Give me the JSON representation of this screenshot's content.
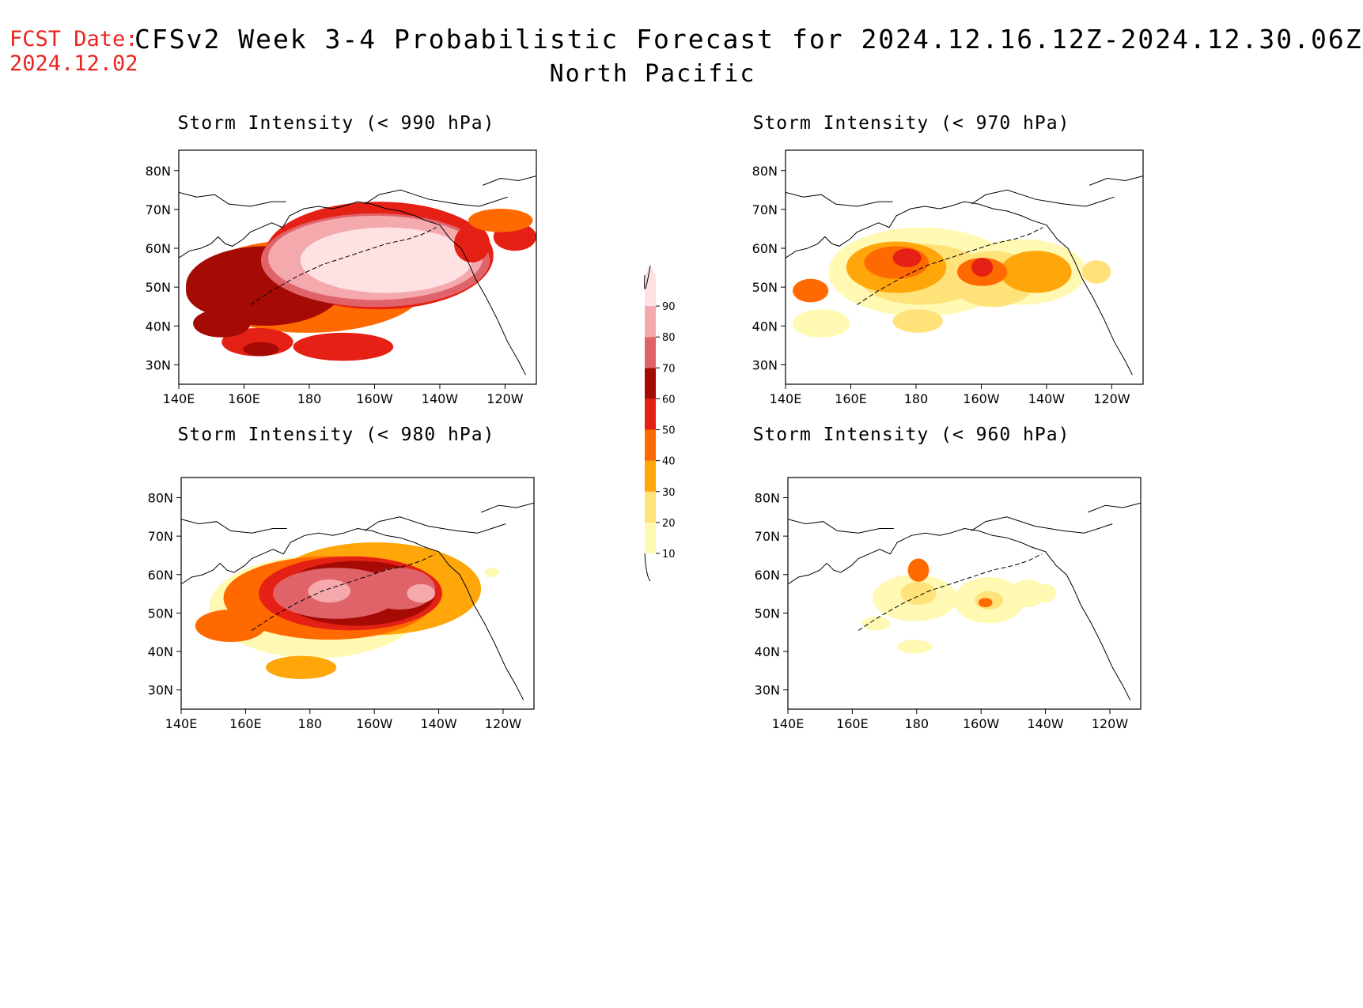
{
  "header": {
    "fcst_label": "FCST Date:",
    "fcst_date": "2024.12.02",
    "title": "CFSv2 Week 3-4 Probabilistic Forecast for 2024.12.16.12Z-2024.12.30.06Z",
    "region": "North Pacific"
  },
  "panels": [
    {
      "title": "Storm Intensity (< 990 hPa)",
      "threshold_hpa": 990
    },
    {
      "title": "Storm Intensity (< 970 hPa)",
      "threshold_hpa": 970
    },
    {
      "title": "Storm Intensity (< 980 hPa)",
      "threshold_hpa": 980
    },
    {
      "title": "Storm Intensity (< 960 hPa)",
      "threshold_hpa": 960
    }
  ],
  "axes": {
    "lon_ticks": [
      "140E",
      "160E",
      "180",
      "160W",
      "140W",
      "120W"
    ],
    "lat_ticks": [
      "80N",
      "70N",
      "60N",
      "50N",
      "40N",
      "30N"
    ]
  },
  "colorbar": {
    "levels": [
      10,
      20,
      30,
      40,
      50,
      60,
      70,
      80,
      90
    ],
    "labels": [
      "10",
      "20",
      "30",
      "40",
      "50",
      "60",
      "70",
      "80",
      "90"
    ],
    "colors": [
      "#fff9b4",
      "#ffe27a",
      "#ffa60a",
      "#ff6a00",
      "#e52014",
      "#a50b04",
      "#e0636a",
      "#f4a9ad",
      "#fde1e3"
    ]
  },
  "colors": {
    "fcst_label": "#e8251f",
    "coastline": "#000000"
  }
}
